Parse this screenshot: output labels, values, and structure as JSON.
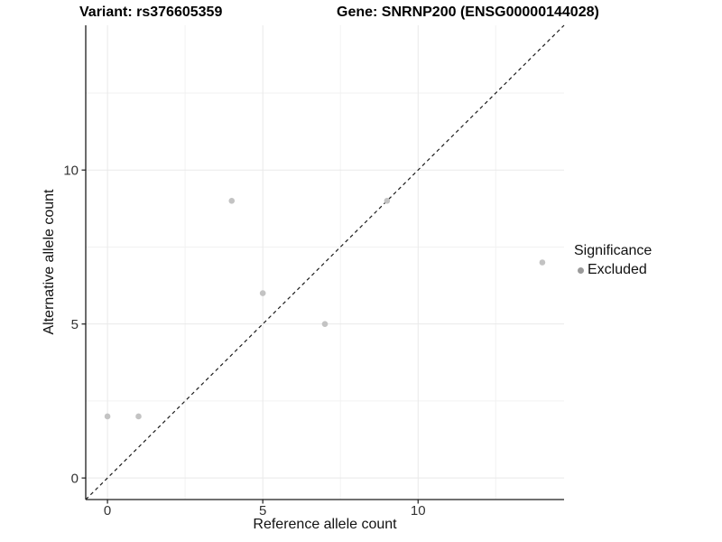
{
  "figure": {
    "title_left": "Variant: rs376605359",
    "title_right": "Gene: SNRNP200 (ENSG00000144028)",
    "x_axis_label": "Reference allele count",
    "y_axis_label": "Alternative allele count",
    "legend": {
      "title": "Significance",
      "items": [
        {
          "label": "Excluded",
          "key_color": "#9a9a9a"
        }
      ]
    }
  },
  "chart_data": {
    "type": "scatter",
    "title": "Variant: rs376605359 | Gene: SNRNP200 (ENSG00000144028)",
    "xlabel": "Reference allele count",
    "ylabel": "Alternative allele count",
    "xlim": [
      -0.7,
      14.7
    ],
    "ylim": [
      -0.7,
      14.7
    ],
    "x_ticks": [
      0,
      5,
      10
    ],
    "y_ticks": [
      0,
      5,
      10
    ],
    "minor_gridlines": [
      2.5,
      7.5,
      12.5
    ],
    "grid": "on",
    "legend_position": "right",
    "series": [
      {
        "name": "Excluded",
        "color": "#c3c3c3",
        "points": [
          [
            0,
            2
          ],
          [
            1,
            2
          ],
          [
            4,
            9
          ],
          [
            5,
            6
          ],
          [
            7,
            5
          ],
          [
            9,
            9
          ],
          [
            14,
            7
          ]
        ]
      }
    ],
    "reference_line": {
      "kind": "identity",
      "style": "dashed",
      "from": -0.7,
      "to": 14.7
    }
  },
  "colors": {
    "background": "#ffffff",
    "axis_line": "#1c1c1c",
    "dashed_line": "#1c1c1c",
    "grid_major": "#e9e9e9",
    "grid_minor": "#f2f2f2",
    "tick_text": "#333333",
    "point_fill": "#c3c3c3",
    "legend_dot": "#9a9a9a"
  }
}
